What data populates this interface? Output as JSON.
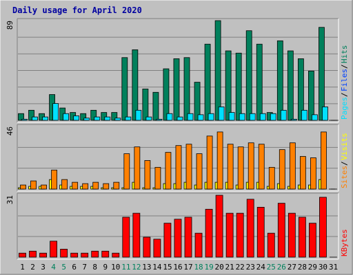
{
  "title": "Daily usage for April 2020",
  "colors": {
    "background": "#C0C0C0",
    "panel": "#C0C0C0",
    "title": "#0000A0",
    "hits": "#00805C",
    "files": "#0040FF",
    "pages": "#00E0FF",
    "visits": "#FFFF00",
    "sites": "#FF8000",
    "kbytes": "#FF0000",
    "weekend_day": "#00805C",
    "weekday": "#000000"
  },
  "chart_data": [
    {
      "type": "bar",
      "panel": "hits-files-pages",
      "x": [
        1,
        2,
        3,
        4,
        5,
        6,
        7,
        8,
        9,
        10,
        11,
        12,
        13,
        14,
        15,
        16,
        17,
        18,
        19,
        20,
        21,
        22,
        23,
        24,
        25,
        26,
        27,
        28,
        29,
        30,
        31
      ],
      "scale_max_label": "89",
      "ylim": [
        0,
        89
      ],
      "series": [
        {
          "name": "Hits",
          "color": "#00805C",
          "values": [
            6,
            9,
            6,
            23,
            11,
            7,
            6,
            9,
            7,
            7,
            56,
            63,
            28,
            25,
            46,
            55,
            56,
            34,
            68,
            89,
            62,
            60,
            80,
            68,
            7,
            71,
            62,
            55,
            44,
            83,
            0
          ]
        },
        {
          "name": "Files",
          "color": "#0040FF",
          "values": [
            0,
            0,
            0,
            0,
            0,
            0,
            0,
            0,
            0,
            0,
            0,
            0,
            0,
            0,
            0,
            0,
            0,
            0,
            0,
            0,
            0,
            0,
            0,
            0,
            0,
            0,
            0,
            0,
            0,
            0,
            0
          ]
        },
        {
          "name": "Pages",
          "color": "#00E0FF",
          "values": [
            1,
            3,
            3,
            15,
            6,
            4,
            2,
            3,
            3,
            2,
            3,
            9,
            3,
            1,
            6,
            3,
            6,
            5,
            6,
            12,
            7,
            6,
            6,
            6,
            6,
            9,
            1,
            9,
            5,
            12,
            0
          ]
        }
      ],
      "legend": [
        "Pages",
        "Files",
        "Hits"
      ],
      "legend_placement": "right-vertical"
    },
    {
      "type": "bar",
      "panel": "visits-sites",
      "x": [
        1,
        2,
        3,
        4,
        5,
        6,
        7,
        8,
        9,
        10,
        11,
        12,
        13,
        14,
        15,
        16,
        17,
        18,
        19,
        20,
        21,
        22,
        23,
        24,
        25,
        26,
        27,
        28,
        29,
        30,
        31
      ],
      "scale_max_label": "46",
      "ylim": [
        0,
        46
      ],
      "series": [
        {
          "name": "Visits",
          "color": "#FFFF00",
          "values": [
            1,
            2,
            2,
            7,
            3,
            2,
            2,
            2,
            1,
            1,
            1,
            5,
            1,
            1,
            4,
            4,
            5,
            3,
            5,
            5,
            5,
            3,
            5,
            5,
            2,
            4,
            2,
            3,
            3,
            7,
            0
          ]
        },
        {
          "name": "Sites",
          "color": "#FF8000",
          "values": [
            3,
            6,
            3,
            14,
            7,
            5,
            4,
            5,
            4,
            5,
            26,
            31,
            21,
            16,
            27,
            32,
            33,
            26,
            39,
            42,
            33,
            31,
            34,
            33,
            16,
            29,
            34,
            24,
            23,
            42,
            0
          ]
        }
      ],
      "legend": [
        "Sites",
        "Visits"
      ],
      "legend_placement": "right-vertical"
    },
    {
      "type": "bar",
      "panel": "kbytes",
      "x": [
        1,
        2,
        3,
        4,
        5,
        6,
        7,
        8,
        9,
        10,
        11,
        12,
        13,
        14,
        15,
        16,
        17,
        18,
        19,
        20,
        21,
        22,
        23,
        24,
        25,
        26,
        27,
        28,
        29,
        30,
        31
      ],
      "scale_max_label": "31",
      "ylim": [
        0,
        31
      ],
      "series": [
        {
          "name": "KBytes",
          "color": "#FF0000",
          "values": [
            2,
            3,
            2,
            8,
            4,
            2,
            2,
            3,
            3,
            2,
            20,
            22,
            10,
            9,
            17,
            19,
            20,
            12,
            24,
            31,
            22,
            22,
            29,
            25,
            12,
            27,
            22,
            20,
            17,
            30,
            0
          ]
        }
      ],
      "legend": [
        "KBytes"
      ],
      "legend_placement": "right-vertical"
    }
  ],
  "x_labels": [
    "1",
    "2",
    "3",
    "4",
    "5",
    "6",
    "7",
    "8",
    "9",
    "10",
    "11",
    "12",
    "13",
    "14",
    "15",
    "16",
    "17",
    "18",
    "19",
    "20",
    "21",
    "22",
    "23",
    "24",
    "25",
    "26",
    "27",
    "28",
    "29",
    "30",
    "31"
  ],
  "weekend_days": [
    4,
    5,
    11,
    12,
    18,
    19,
    25,
    26
  ]
}
